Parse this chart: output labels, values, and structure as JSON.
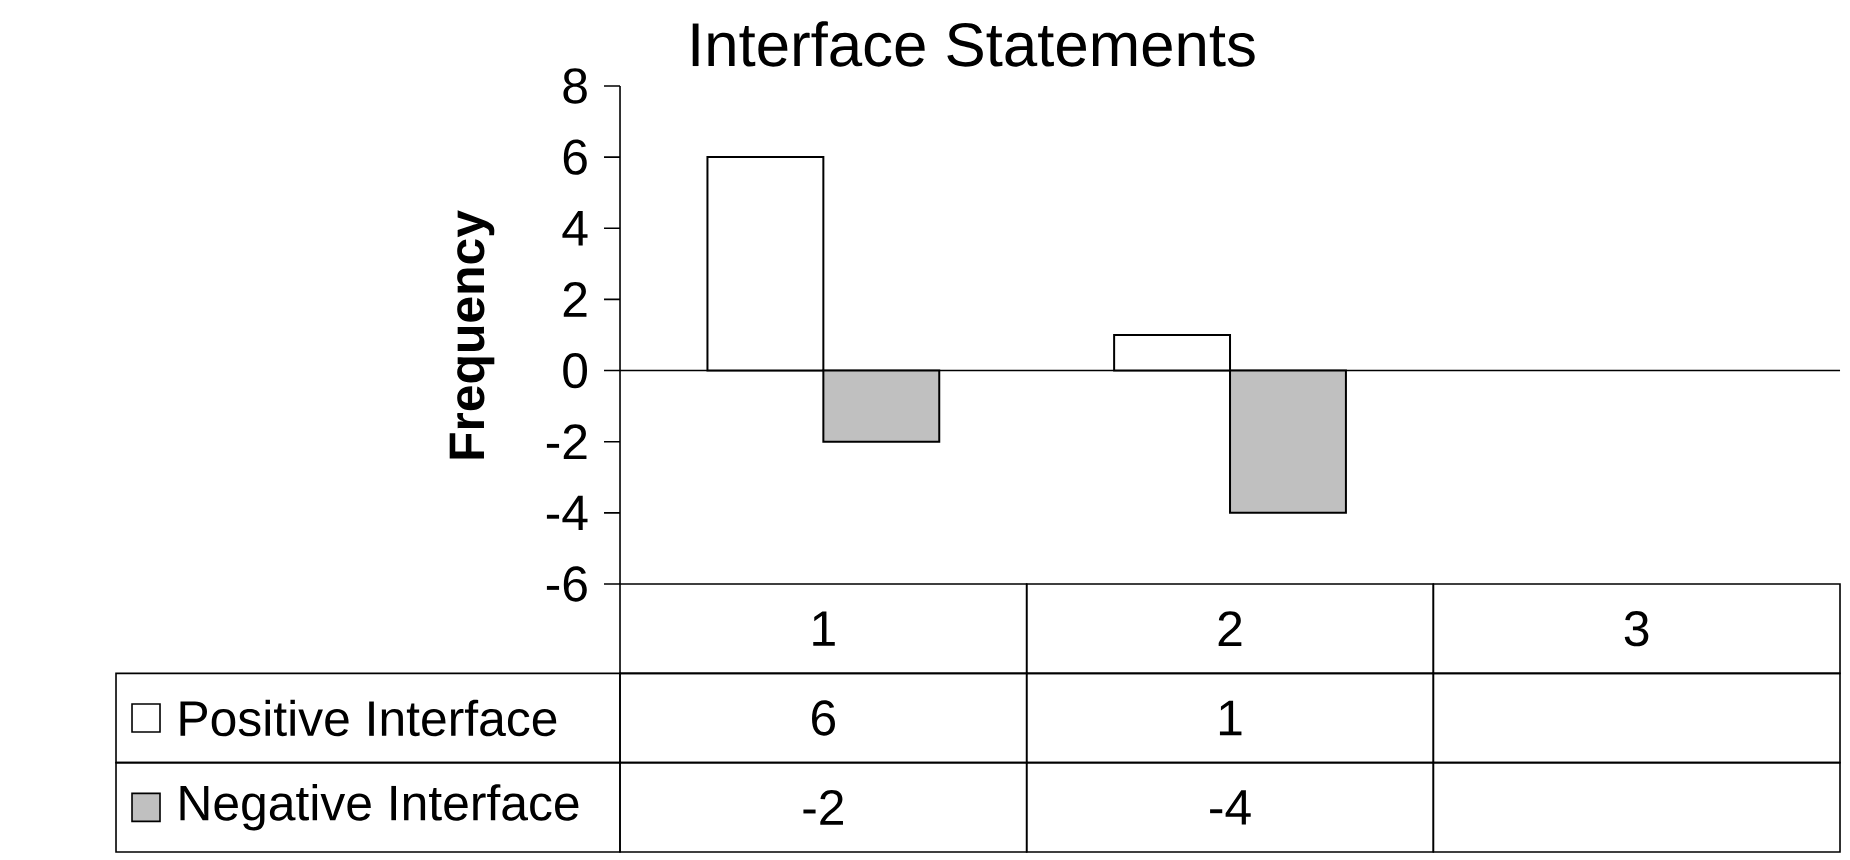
{
  "chart_data": {
    "type": "bar",
    "title": "Interface Statements",
    "ylabel": "Frequency",
    "categories": [
      "1",
      "2",
      "3"
    ],
    "series": [
      {
        "name": "Positive Interface",
        "color": "#ffffff",
        "values": [
          6,
          1,
          null
        ]
      },
      {
        "name": "Negative Interface",
        "color": "#c0c0c0",
        "values": [
          -2,
          -4,
          null
        ]
      }
    ],
    "ylim": [
      -6,
      8
    ],
    "yticks": [
      -6,
      -4,
      -2,
      0,
      2,
      4,
      6,
      8
    ],
    "data_labels": true,
    "legend": "bottom"
  }
}
